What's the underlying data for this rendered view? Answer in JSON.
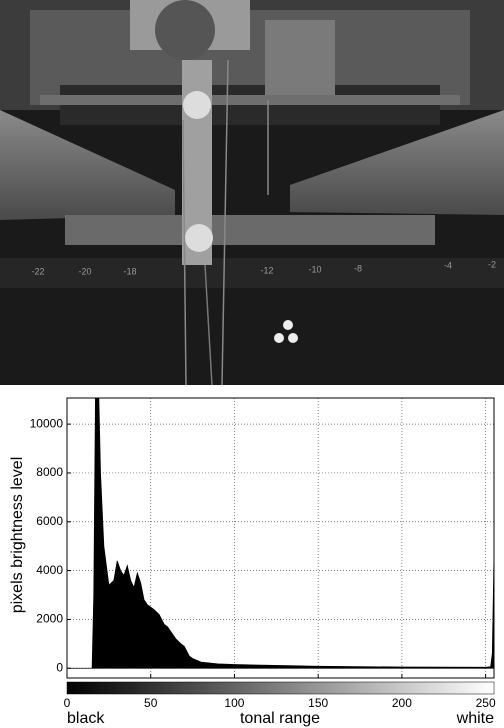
{
  "photo": {
    "scale_labels": [
      "-22",
      "-20",
      "-18",
      "-12",
      "-10",
      "-8",
      "-4",
      "-2"
    ]
  },
  "chart_data": {
    "type": "area",
    "ylabel": "pixels brightness level",
    "xlabel": "tonal range",
    "x_left_label": "black",
    "x_right_label": "white",
    "color": "#000000",
    "x": [
      0,
      15,
      16,
      17,
      19,
      20,
      22,
      25,
      28,
      30,
      32,
      34,
      36,
      38,
      40,
      42,
      44,
      46,
      48,
      50,
      52,
      55,
      58,
      60,
      63,
      65,
      68,
      70,
      73,
      75,
      80,
      90,
      100,
      120,
      150,
      200,
      250,
      253,
      254,
      255
    ],
    "values": [
      0,
      0,
      3000,
      11070,
      11070,
      8000,
      5000,
      3400,
      3600,
      4400,
      4000,
      3800,
      4200,
      3600,
      3300,
      3900,
      3500,
      2800,
      2600,
      2500,
      2400,
      2200,
      1800,
      1700,
      1400,
      1200,
      1000,
      900,
      500,
      400,
      250,
      180,
      150,
      120,
      80,
      50,
      40,
      60,
      600,
      4600
    ],
    "xlim": [
      0,
      255
    ],
    "ylim": [
      -400,
      11070
    ],
    "xticks": [
      0,
      50,
      100,
      150,
      200,
      250
    ],
    "yticks": [
      0,
      2000,
      4000,
      6000,
      8000,
      10000
    ],
    "grid": true
  }
}
